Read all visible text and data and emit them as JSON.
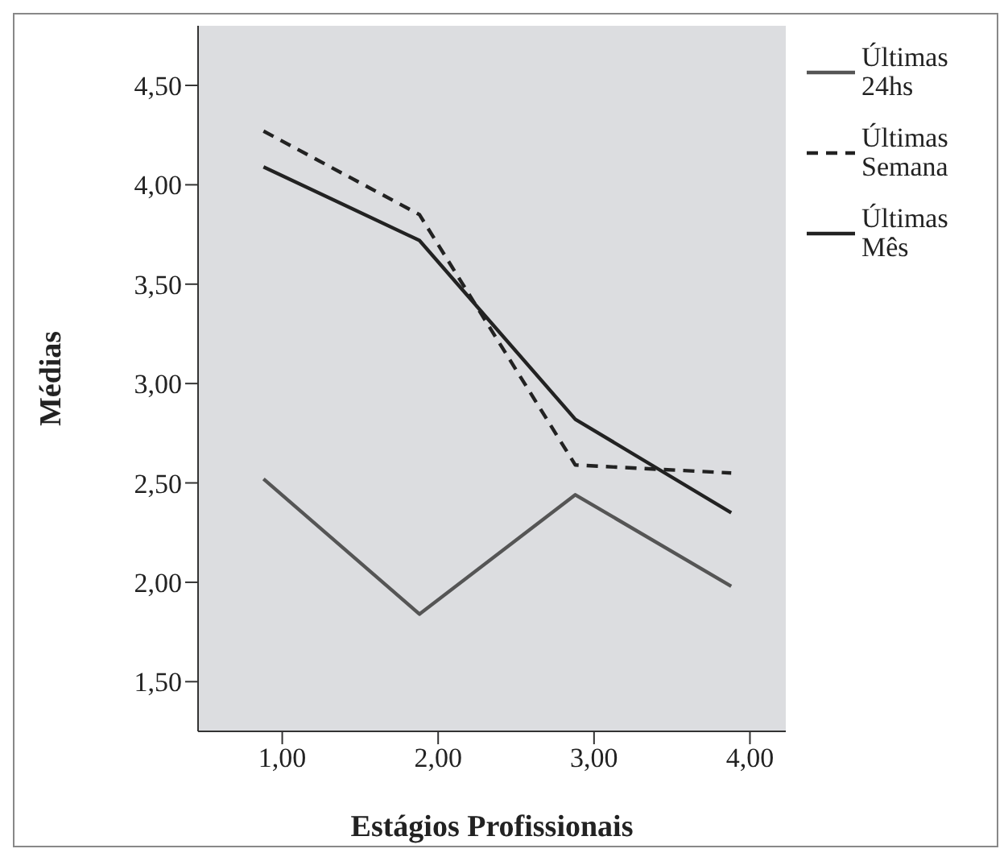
{
  "chart_data": {
    "type": "line",
    "xlabel": "Estágios Profissionais",
    "ylabel": "Médias",
    "x": [
      0.88,
      1.88,
      2.88,
      3.88
    ],
    "series": [
      {
        "name": "Últimas 24hs",
        "color": "#555555",
        "line_style": "solid",
        "values": [
          2.52,
          1.84,
          2.44,
          1.98
        ]
      },
      {
        "name": "Últimas Semana",
        "color": "#222222",
        "line_style": "dashed",
        "values": [
          4.27,
          3.85,
          2.59,
          2.55
        ]
      },
      {
        "name": "Últimas Mês",
        "color": "#222222",
        "line_style": "solid",
        "values": [
          4.09,
          3.72,
          2.82,
          2.35
        ]
      }
    ],
    "xlim": [
      0.46,
      4.23
    ],
    "xticks": [
      {
        "value": 1,
        "label": "1,00"
      },
      {
        "value": 2,
        "label": "2,00"
      },
      {
        "value": 3,
        "label": "3,00"
      },
      {
        "value": 4,
        "label": "4,00"
      }
    ],
    "ylim": [
      1.25,
      4.8
    ],
    "yticks": [
      {
        "value": 1.5,
        "label": "1,50"
      },
      {
        "value": 2,
        "label": "2,00"
      },
      {
        "value": 2.5,
        "label": "2,50"
      },
      {
        "value": 3,
        "label": "3,00"
      },
      {
        "value": 3.5,
        "label": "3,50"
      },
      {
        "value": 4,
        "label": "4,00"
      },
      {
        "value": 4.5,
        "label": "4,50"
      }
    ],
    "grid": false,
    "legend": "top right",
    "marker": "none"
  }
}
